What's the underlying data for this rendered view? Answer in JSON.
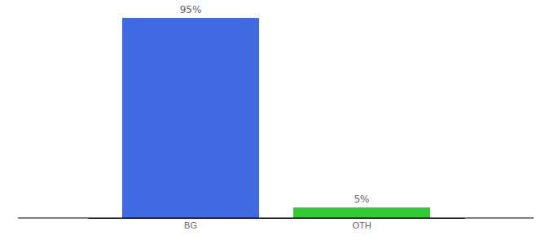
{
  "chart_data": {
    "type": "bar",
    "categories": [
      "BG",
      "OTH"
    ],
    "values": [
      95,
      5
    ],
    "value_labels": [
      "95%",
      "5%"
    ],
    "colors": [
      "#4169e1",
      "#32cd32"
    ],
    "data_labels": true,
    "tick_labels": "x"
  }
}
